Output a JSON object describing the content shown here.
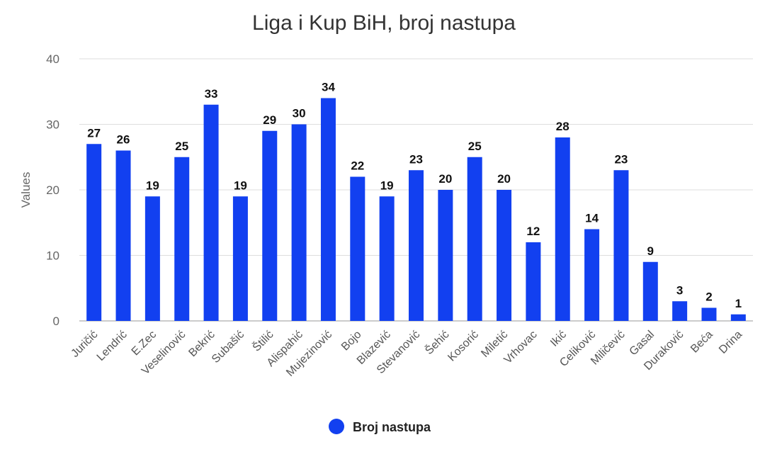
{
  "chart_data": {
    "type": "bar",
    "title": "Liga i Kup BiH, broj nastupa",
    "xlabel": "",
    "ylabel": "Values",
    "ylim": [
      0,
      40
    ],
    "yticks": [
      0,
      10,
      20,
      30,
      40
    ],
    "grid": true,
    "legend_position": "bottom",
    "color": "#1240f0",
    "categories": [
      "Juričić",
      "Lendrić",
      "E.Zec",
      "Veselinović",
      "Bekrić",
      "Subašić",
      "Štilić",
      "Alispahić",
      "Mujezinović",
      "Bojo",
      "Blazević",
      "Stevanović",
      "Šehić",
      "Kosorić",
      "Miletić",
      "Vrhovac",
      "Ikić",
      "Celiković",
      "Miličević",
      "Gasal",
      "Duraković",
      "Beća",
      "Drina"
    ],
    "series": [
      {
        "name": "Broj nastupa",
        "values": [
          27,
          26,
          19,
          25,
          33,
          19,
          29,
          30,
          34,
          22,
          19,
          23,
          20,
          25,
          20,
          12,
          28,
          14,
          23,
          9,
          3,
          2,
          1
        ]
      }
    ]
  }
}
